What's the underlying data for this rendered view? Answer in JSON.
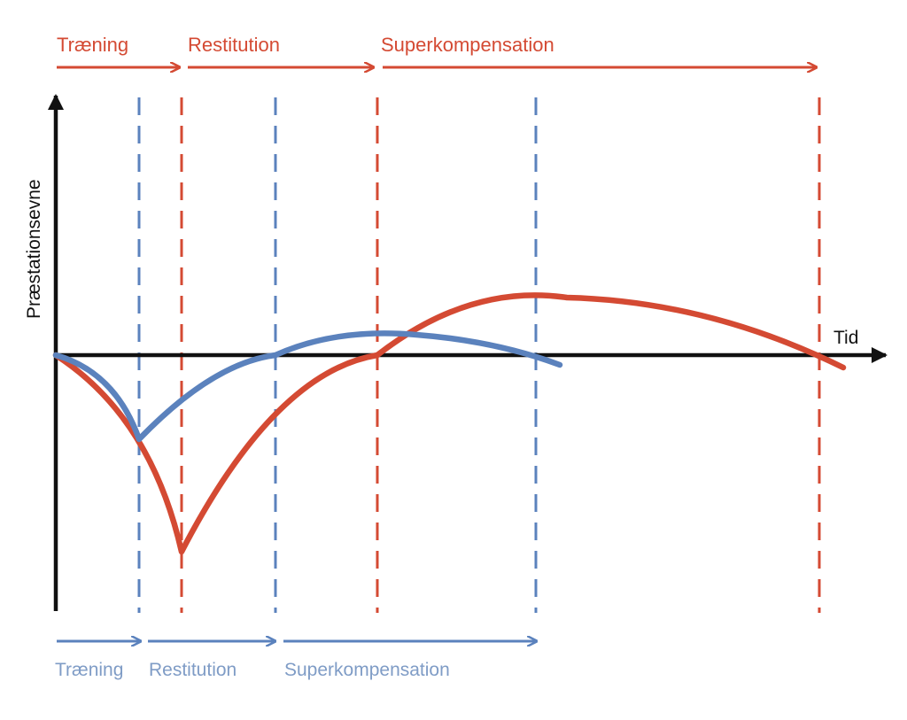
{
  "axes": {
    "y_label": "Præstationsevne",
    "x_label": "Tid"
  },
  "colors": {
    "red": "#d44a33",
    "blue": "#5b82bd",
    "blue_label": "#7f9cc6",
    "axis": "#111111"
  },
  "red_phases": [
    {
      "label": "Træning"
    },
    {
      "label": "Restitution"
    },
    {
      "label": "Superkompensation"
    }
  ],
  "blue_phases": [
    {
      "label": "Træning"
    },
    {
      "label": "Restitution"
    },
    {
      "label": "Superkompensation"
    }
  ]
}
